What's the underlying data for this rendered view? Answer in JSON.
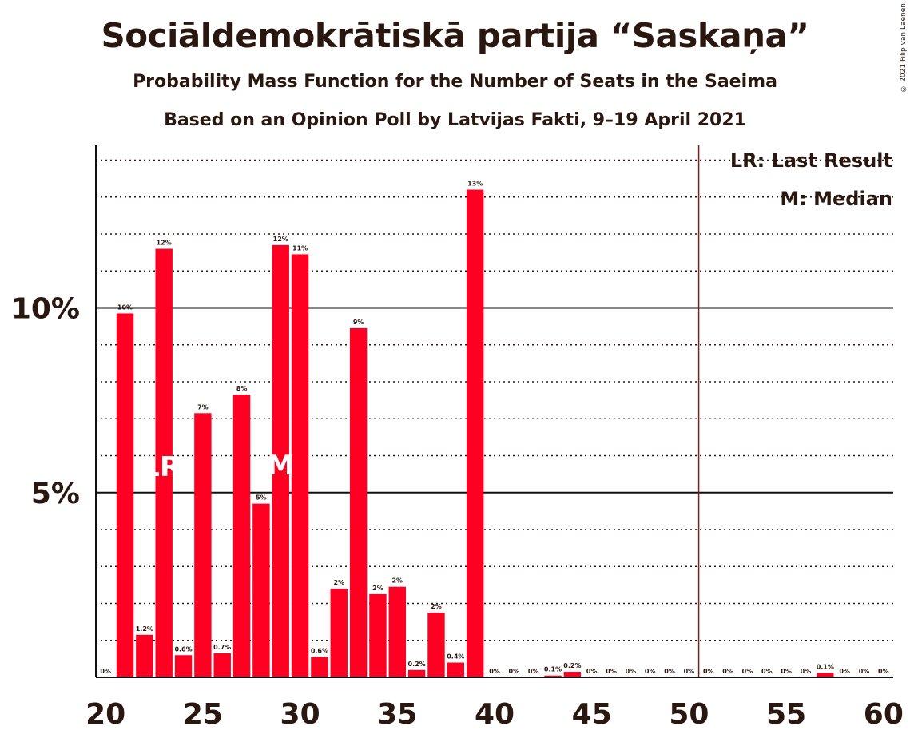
{
  "title": "Sociāldemokrātiskā partija “Saskaņa”",
  "subtitle": "Probability Mass Function for the Number of Seats in the Saeima",
  "subtitle2": "Based on an Opinion Poll by Latvijas Fakti, 9–19 April 2021",
  "copyright": "© 2021 Filip van Laenen",
  "colors": {
    "bar": "#ff0022",
    "text": "#2a1810",
    "majority_line": "#7a2020"
  },
  "legend": {
    "lr": "LR: Last Result",
    "m": "M: Median"
  },
  "chart_data": {
    "type": "bar",
    "x": [
      20,
      21,
      22,
      23,
      24,
      25,
      26,
      27,
      28,
      29,
      30,
      31,
      32,
      33,
      34,
      35,
      36,
      37,
      38,
      39,
      40,
      41,
      42,
      43,
      44,
      45,
      46,
      47,
      48,
      49,
      50,
      51,
      52,
      53,
      54,
      55,
      56,
      57,
      58,
      59,
      60
    ],
    "values": [
      0,
      9.85,
      1.15,
      11.6,
      0.6,
      7.15,
      0.65,
      7.65,
      4.7,
      11.7,
      11.45,
      0.55,
      2.4,
      9.45,
      2.25,
      2.45,
      0.2,
      1.75,
      0.4,
      13.2,
      0,
      0,
      0,
      0.05,
      0.15,
      0,
      0,
      0,
      0,
      0,
      0,
      0,
      0,
      0,
      0,
      0,
      0,
      0.12,
      0,
      0,
      0
    ],
    "data_labels": [
      "0%",
      "10%",
      "1.2%",
      "12%",
      "0.6%",
      "7%",
      "0.7%",
      "8%",
      "5%",
      "12%",
      "11%",
      "0.6%",
      "2%",
      "9%",
      "2%",
      "2%",
      "0.2%",
      "2%",
      "0.4%",
      "13%",
      "0%",
      "0%",
      "0%",
      "0.1%",
      "0.2%",
      "0%",
      "0%",
      "0%",
      "0%",
      "0%",
      "0%",
      "0%",
      "0%",
      "0%",
      "0%",
      "0%",
      "0%",
      "0.1%",
      "0%",
      "0%",
      "0%"
    ],
    "x_ticks": [
      20,
      25,
      30,
      35,
      40,
      45,
      50,
      55,
      60
    ],
    "x_tick_labels": [
      "20",
      "25",
      "30",
      "35",
      "40",
      "45",
      "50",
      "55",
      "60"
    ],
    "y_ticks": [
      5,
      10
    ],
    "y_tick_labels": [
      "5%",
      "10%"
    ],
    "ylim": [
      0,
      14.4
    ],
    "xlim": [
      20,
      60
    ],
    "last_result": 23,
    "last_result_label": "LR",
    "median": 29,
    "median_label": "M",
    "majority_line": 50.5,
    "grid": true,
    "legend_position": "top-right"
  }
}
